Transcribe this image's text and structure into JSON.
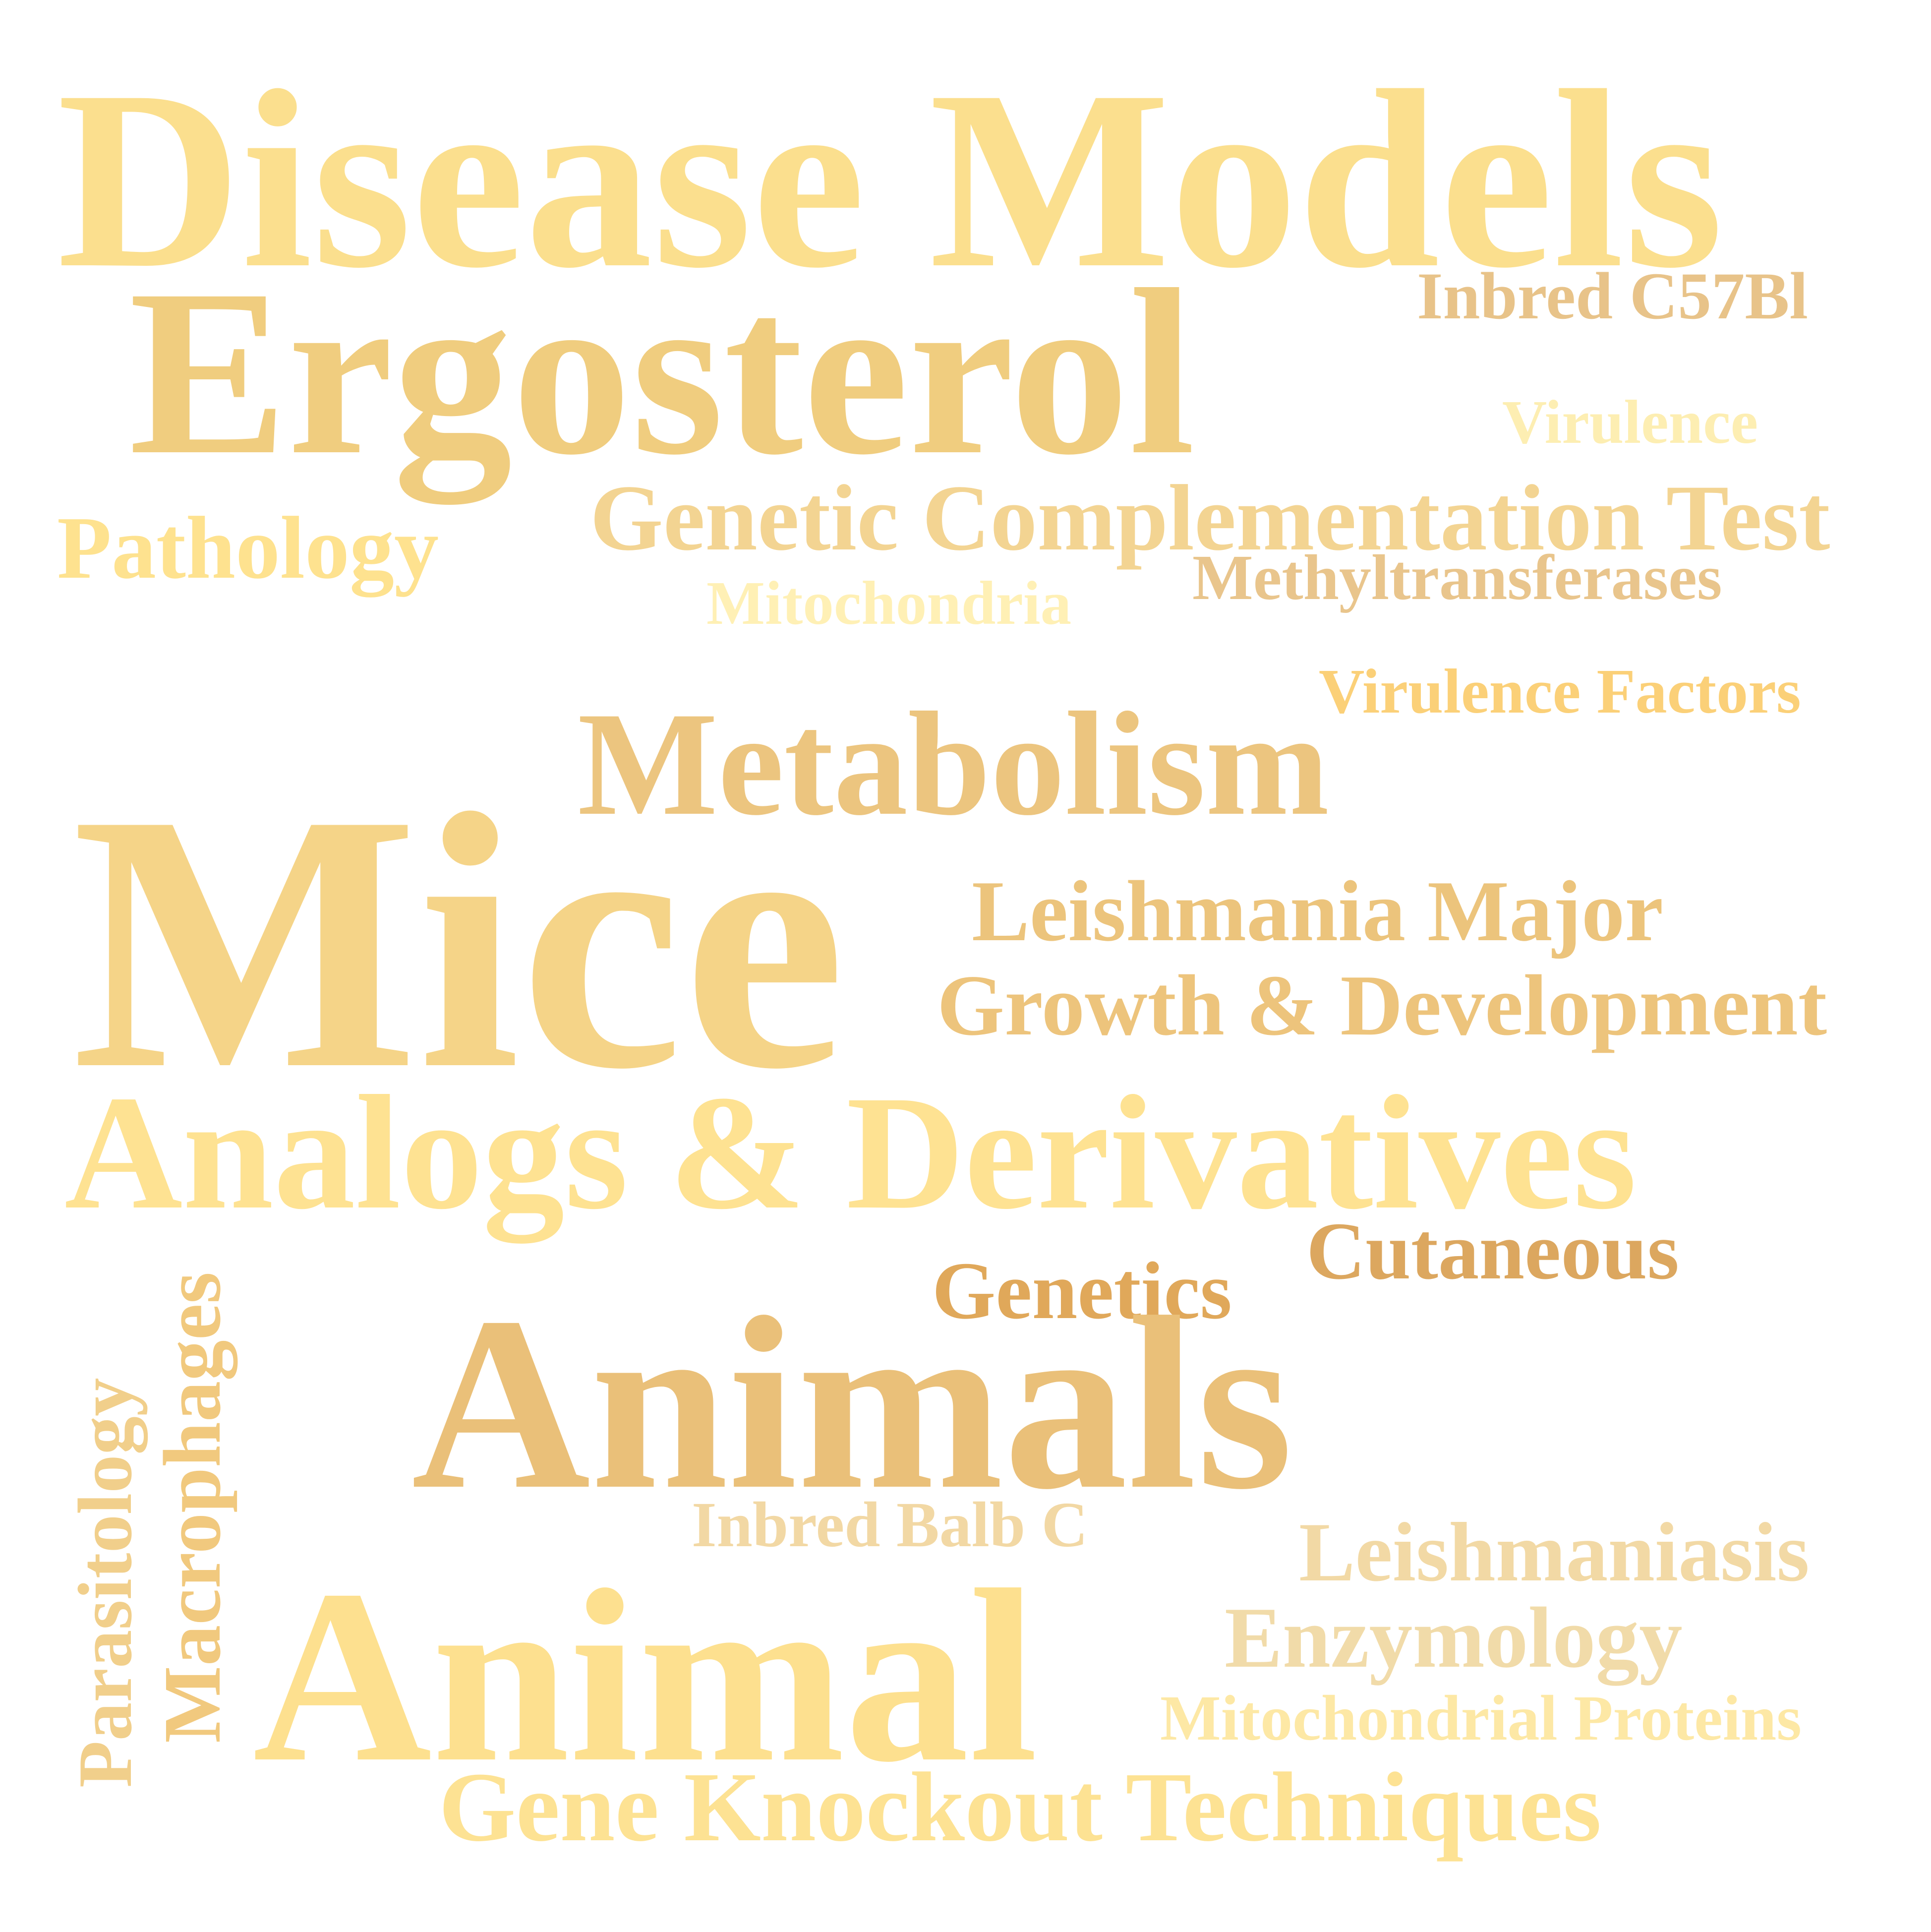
{
  "cloud": {
    "words": {
      "disease_models": "Disease Models",
      "ergosterol": "Ergosterol",
      "inbred_c57bl": "Inbred C57Bl",
      "virulence": "Virulence",
      "genetic_complementation_test": "Genetic Complementation Test",
      "pathology": "Pathology",
      "methyltransferases": "Methyltransferases",
      "mitochondria": "Mitochondria",
      "virulence_factors": "Virulence Factors",
      "metabolism": "Metabolism",
      "mice": "Mice",
      "leishmania_major": "Leishmania Major",
      "growth_development": "Growth & Development",
      "analogs_derivatives": "Analogs & Derivatives",
      "cutaneous": "Cutaneous",
      "genetics": "Genetics",
      "animals": "Animals",
      "macrophages": "Macrophages",
      "parasitology": "Parasitology",
      "inbred_balb_c": "Inbred Balb C",
      "leishmaniasis": "Leishmaniasis",
      "animal": "Animal",
      "enzymology": "Enzymology",
      "mitochondrial_proteins": "Mitochondrial Proteins",
      "gene_knockout_techniques": "Gene Knockout Techniques"
    },
    "colors": {
      "background": "#ffffff",
      "pale_gold": "#fee292",
      "gold": "#ecc47c",
      "amber": "#dca75f"
    }
  }
}
